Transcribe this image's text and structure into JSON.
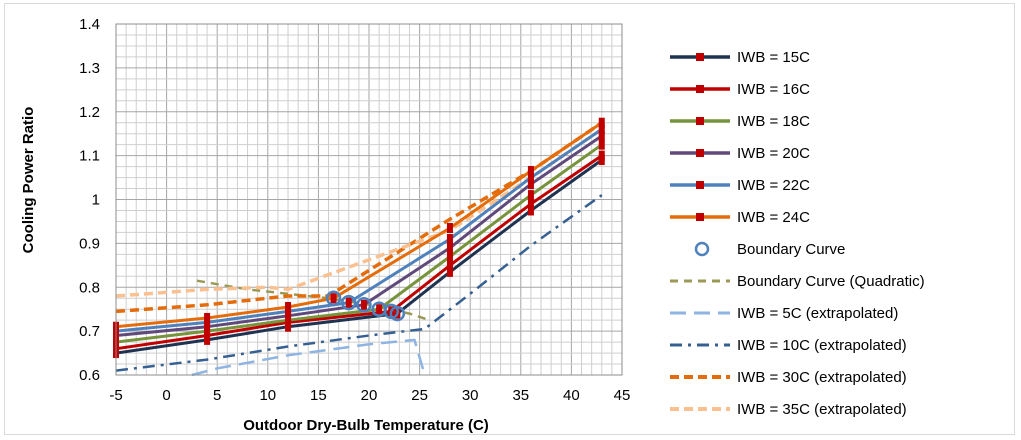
{
  "chart_data": {
    "type": "line",
    "title": "",
    "xlabel": "Outdoor Dry-Bulb Temperature (C)",
    "ylabel": "Cooling Power Ratio",
    "xlim": [
      -5,
      45
    ],
    "ylim": [
      0.6,
      1.4
    ],
    "x_ticks": [
      "-5",
      "0",
      "5",
      "10",
      "15",
      "20",
      "25",
      "30",
      "35",
      "40",
      "45"
    ],
    "y_ticks": [
      "0.6",
      "0.7",
      "0.8",
      "0.9",
      "1",
      "1.1",
      "1.2",
      "1.3",
      "1.4"
    ],
    "grid": true,
    "legend": "right",
    "series": [
      {
        "name": "IWB = 15C",
        "color": "#1f3350",
        "style": "solid-marker",
        "points": [
          [
            -5,
            0.65
          ],
          [
            4,
            0.68
          ],
          [
            12,
            0.71
          ],
          [
            22.8,
            0.74
          ],
          [
            28,
            0.835
          ],
          [
            36,
            0.975
          ],
          [
            43,
            1.09
          ]
        ]
      },
      {
        "name": "IWB = 16C",
        "color": "#c00000",
        "style": "solid-marker",
        "points": [
          [
            -5,
            0.66
          ],
          [
            4,
            0.69
          ],
          [
            12,
            0.72
          ],
          [
            22.2,
            0.745
          ],
          [
            28,
            0.85
          ],
          [
            36,
            0.99
          ],
          [
            43,
            1.1
          ]
        ]
      },
      {
        "name": "IWB = 18C",
        "color": "#77933c",
        "style": "solid-marker",
        "points": [
          [
            -5,
            0.675
          ],
          [
            4,
            0.7
          ],
          [
            12,
            0.725
          ],
          [
            21,
            0.75
          ],
          [
            28,
            0.87
          ],
          [
            36,
            1.01
          ],
          [
            43,
            1.125
          ]
        ]
      },
      {
        "name": "IWB = 20C",
        "color": "#604a7b",
        "style": "solid-marker",
        "points": [
          [
            -5,
            0.69
          ],
          [
            4,
            0.71
          ],
          [
            12,
            0.735
          ],
          [
            19.5,
            0.76
          ],
          [
            28,
            0.89
          ],
          [
            36,
            1.035
          ],
          [
            43,
            1.145
          ]
        ]
      },
      {
        "name": "IWB = 22C",
        "color": "#4f81bd",
        "style": "solid-marker",
        "points": [
          [
            -5,
            0.7
          ],
          [
            4,
            0.72
          ],
          [
            12,
            0.745
          ],
          [
            18,
            0.765
          ],
          [
            28,
            0.91
          ],
          [
            36,
            1.05
          ],
          [
            43,
            1.16
          ]
        ]
      },
      {
        "name": "IWB = 24C",
        "color": "#e46c0a",
        "style": "solid-marker",
        "points": [
          [
            -5,
            0.71
          ],
          [
            4,
            0.73
          ],
          [
            12,
            0.755
          ],
          [
            16.5,
            0.775
          ],
          [
            28,
            0.935
          ],
          [
            36,
            1.065
          ],
          [
            43,
            1.175
          ]
        ]
      },
      {
        "name": "Boundary Curve",
        "color": "#4f81bd",
        "style": "circles",
        "points": [
          [
            16.5,
            0.775
          ],
          [
            18,
            0.765
          ],
          [
            19.5,
            0.76
          ],
          [
            21,
            0.75
          ],
          [
            22.2,
            0.745
          ],
          [
            22.8,
            0.74
          ]
        ]
      },
      {
        "name": "Boundary Curve (Quadratic)",
        "color": "#9a9a56",
        "style": "dash",
        "points": [
          [
            3,
            0.815
          ],
          [
            8,
            0.795
          ],
          [
            12,
            0.785
          ],
          [
            16,
            0.775
          ],
          [
            20,
            0.76
          ],
          [
            24,
            0.74
          ],
          [
            26,
            0.725
          ]
        ]
      },
      {
        "name": "IWB = 5C (extrapolated)",
        "color": "#8db4e2",
        "style": "longdash",
        "points": [
          [
            2.5,
            0.6
          ],
          [
            5,
            0.615
          ],
          [
            12,
            0.645
          ],
          [
            20,
            0.67
          ],
          [
            24.5,
            0.68
          ],
          [
            25.5,
            0.6
          ]
        ]
      },
      {
        "name": "IWB = 10C (extrapolated)",
        "color": "#366092",
        "style": "dashdot",
        "points": [
          [
            -5,
            0.61
          ],
          [
            4,
            0.635
          ],
          [
            12,
            0.665
          ],
          [
            20,
            0.69
          ],
          [
            25.5,
            0.705
          ],
          [
            30,
            0.785
          ],
          [
            36,
            0.895
          ],
          [
            43,
            1.01
          ]
        ]
      },
      {
        "name": "IWB = 30C (extrapolated)",
        "color": "#e46c0a",
        "style": "dash-thick",
        "points": [
          [
            -5,
            0.745
          ],
          [
            4,
            0.76
          ],
          [
            12,
            0.78
          ],
          [
            16,
            0.78
          ],
          [
            28,
            0.955
          ],
          [
            36,
            1.065
          ],
          [
            43,
            1.175
          ]
        ]
      },
      {
        "name": "IWB = 35C (extrapolated)",
        "color": "#fac090",
        "style": "dash-thick",
        "points": [
          [
            -5,
            0.78
          ],
          [
            4,
            0.795
          ],
          [
            10,
            0.8
          ],
          [
            12,
            0.795
          ],
          [
            28,
            0.93
          ],
          [
            36,
            1.05
          ],
          [
            43,
            1.16
          ]
        ]
      }
    ]
  }
}
